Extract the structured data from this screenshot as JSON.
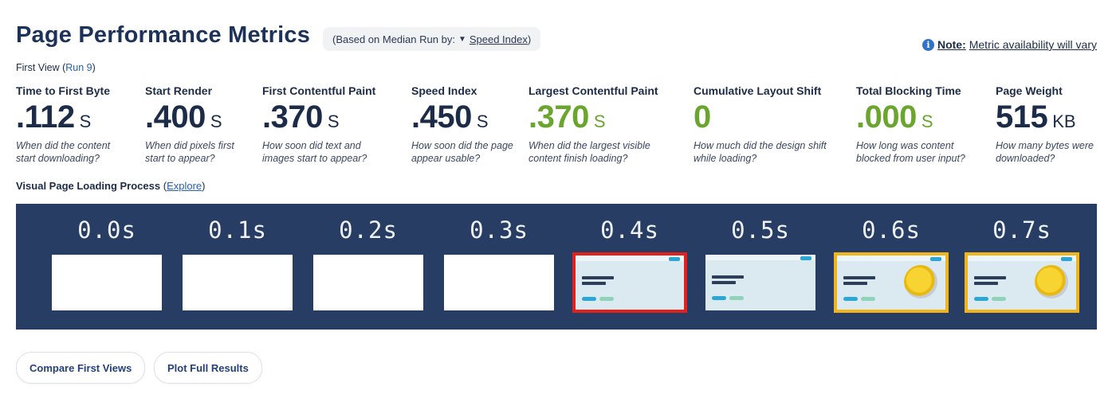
{
  "title": "Page Performance Metrics",
  "median": {
    "prefix": "(Based on Median Run by:",
    "caret": "▼",
    "link": "Speed Index",
    "suffix": ")"
  },
  "note": {
    "icon": "info-icon",
    "label": "Note:",
    "text": "Metric availability will vary"
  },
  "first_view": {
    "prefix": "First View (",
    "run": "Run 9",
    "suffix": ")"
  },
  "metrics": [
    {
      "label": "Time to First Byte",
      "value": ".112",
      "unit": "S",
      "desc": "When did the content start downloading?",
      "status": "neutral"
    },
    {
      "label": "Start Render",
      "value": ".400",
      "unit": "S",
      "desc": "When did pixels first start to appear?",
      "status": "neutral"
    },
    {
      "label": "First Contentful Paint",
      "value": ".370",
      "unit": "S",
      "desc": "How soon did text and images start to appear?",
      "status": "neutral"
    },
    {
      "label": "Speed Index",
      "value": ".450",
      "unit": "S",
      "desc": "How soon did the page appear usable?",
      "status": "neutral"
    },
    {
      "label": "Largest Contentful Paint",
      "value": ".370",
      "unit": "S",
      "desc": "When did the largest visible content finish loading?",
      "status": "good"
    },
    {
      "label": "Cumulative Layout Shift",
      "value": "0",
      "unit": "",
      "desc": "How much did the design shift while loading?",
      "status": "good"
    },
    {
      "label": "Total Blocking Time",
      "value": ".000",
      "unit": "S",
      "desc": "How long was content blocked from user input?",
      "status": "good"
    },
    {
      "label": "Page Weight",
      "value": "515",
      "unit": "KB",
      "desc": "How many bytes were downloaded?",
      "status": "neutral"
    }
  ],
  "visual": {
    "title": "Visual Page Loading Process",
    "paren_open": "(",
    "explore": "Explore",
    "paren_close": ")"
  },
  "frames": [
    {
      "time": "0.0s",
      "state": "blank"
    },
    {
      "time": "0.1s",
      "state": "blank"
    },
    {
      "time": "0.2s",
      "state": "blank"
    },
    {
      "time": "0.3s",
      "state": "blank"
    },
    {
      "time": "0.4s",
      "state": "content-lcp"
    },
    {
      "time": "0.5s",
      "state": "content"
    },
    {
      "time": "0.6s",
      "state": "content-layout-shift"
    },
    {
      "time": "0.7s",
      "state": "content-layout-shift"
    }
  ],
  "colors": {
    "good": "#6aa52e",
    "primary": "#1c2c48",
    "filmstrip_bg": "#283d63",
    "lcp_border": "#e0221c",
    "shift_border": "#f2b41b"
  },
  "buttons": {
    "compare": "Compare First Views",
    "plot": "Plot Full Results"
  }
}
